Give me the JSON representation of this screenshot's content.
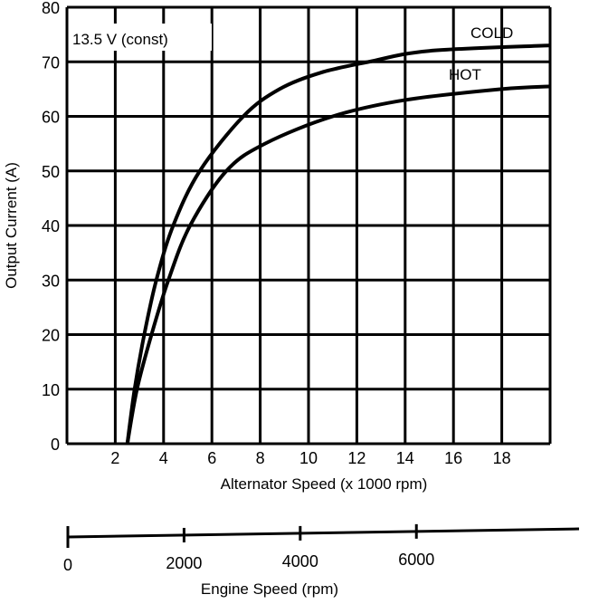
{
  "chart_data": {
    "type": "line",
    "title": "",
    "annotation": "13.5 V (const)",
    "xlabel": "Alternator Speed (x 1000 rpm)",
    "ylabel": "Output Current (A)",
    "xlim": [
      0,
      20
    ],
    "ylim": [
      0,
      80
    ],
    "x_ticks": [
      2,
      4,
      6,
      8,
      10,
      12,
      14,
      16,
      18
    ],
    "y_ticks": [
      0,
      10,
      20,
      30,
      40,
      50,
      60,
      70,
      80
    ],
    "grid": true,
    "series": [
      {
        "name": "COLD",
        "x": [
          2.5,
          2.8,
          3.2,
          3.7,
          4.4,
          5.5,
          7.3,
          8.8,
          10.5,
          12.5,
          15,
          20
        ],
        "y": [
          0,
          10,
          20,
          30,
          40,
          50,
          60,
          65,
          68,
          70,
          72,
          73
        ]
      },
      {
        "name": "HOT",
        "x": [
          2.5,
          2.9,
          3.5,
          4.2,
          5.1,
          6.6,
          8.2,
          11,
          14,
          18,
          20
        ],
        "y": [
          0,
          10,
          20,
          30,
          40,
          50,
          55,
          60,
          63,
          65,
          65.5
        ]
      }
    ],
    "secondary_axis": {
      "label": "Engine Speed (rpm)",
      "ticks": [
        0,
        2000,
        4000,
        6000
      ],
      "range": [
        0,
        8800
      ]
    },
    "colors": {
      "ink": "#000000",
      "background": "#ffffff"
    }
  }
}
